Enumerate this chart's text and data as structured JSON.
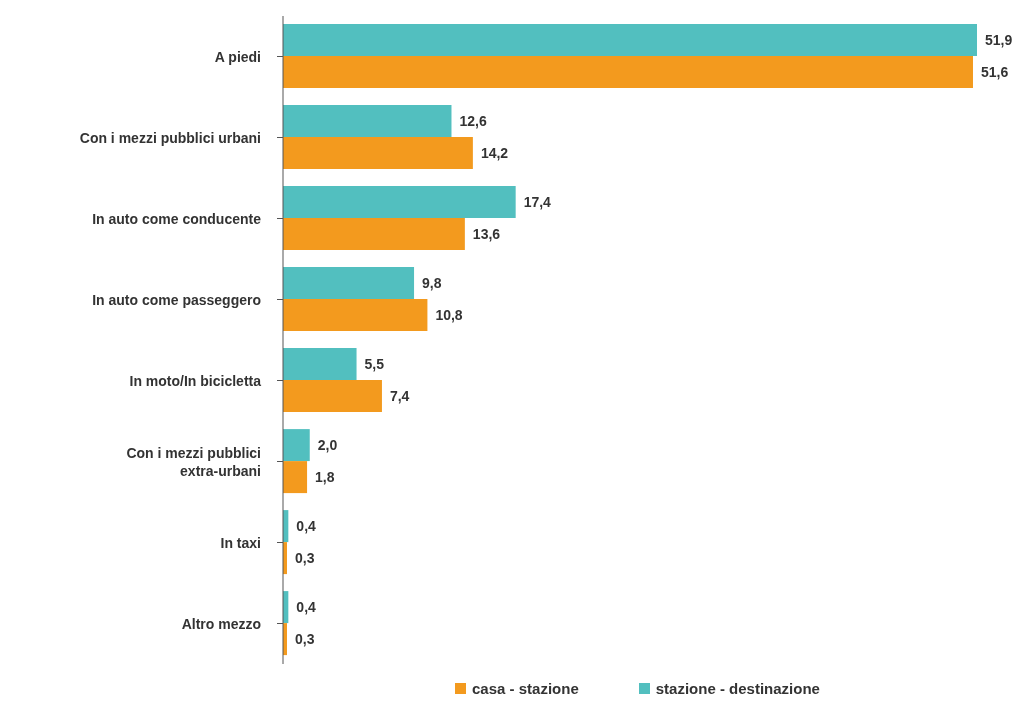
{
  "chart_data": {
    "type": "bar",
    "orientation": "horizontal",
    "categories": [
      "A piedi",
      "Con i mezzi pubblici urbani",
      "In auto come conducente",
      "In auto come passeggero",
      "In moto/In bicicletta",
      "Con i mezzi pubblici extra-urbani",
      "In taxi",
      "Altro mezzo"
    ],
    "series": [
      {
        "name": "casa - stazione",
        "color": "#f39a1e",
        "values": [
          51.6,
          14.2,
          13.6,
          10.8,
          7.4,
          1.8,
          0.3,
          0.3
        ],
        "value_labels": [
          "51,6",
          "14,2",
          "13,6",
          "10,8",
          "7,4",
          "1,8",
          "0,3",
          "0,3"
        ]
      },
      {
        "name": "stazione - destinazione",
        "color": "#52bfbf",
        "values": [
          51.9,
          12.6,
          17.4,
          9.8,
          5.5,
          2.0,
          0.4,
          0.4
        ],
        "value_labels": [
          "51,9",
          "12,6",
          "17,4",
          "9,8",
          "5,5",
          "2,0",
          "0,4",
          "0,4"
        ]
      }
    ],
    "tick_labels": "y",
    "legend": "bottom",
    "grid": false
  }
}
